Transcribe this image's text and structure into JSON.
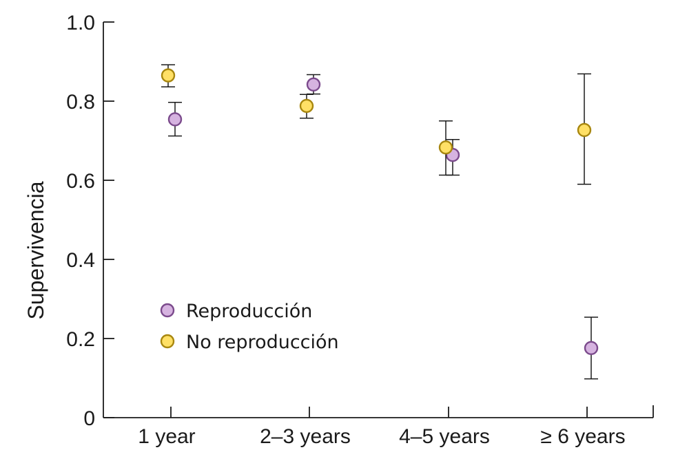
{
  "chart_data": {
    "type": "scatter",
    "title": "",
    "xlabel": "",
    "ylabel": "Supervivencia",
    "ylim": [
      0,
      1
    ],
    "yticks": [
      0,
      0.2,
      0.4,
      0.6,
      0.8,
      1.0
    ],
    "ytick_labels": [
      "0",
      "0.2",
      "0.4",
      "0.6",
      "0.8",
      "1.0"
    ],
    "categories": [
      "1 year",
      "2–3 years",
      "4–5 years",
      "≥ 6 years"
    ],
    "legend_position": "lower-left",
    "series": [
      {
        "name": "Reproducción",
        "color": "#d6b3e0",
        "edge_color": "#7b4a8c",
        "values": [
          0.754,
          0.842,
          0.664,
          0.176
        ],
        "lower": [
          0.712,
          0.818,
          0.613,
          0.098
        ],
        "upper": [
          0.797,
          0.867,
          0.703,
          0.254
        ]
      },
      {
        "name": "No reproducción",
        "color": "#ffe066",
        "edge_color": "#a8870f",
        "values": [
          0.865,
          0.788,
          0.683,
          0.727
        ],
        "lower": [
          0.836,
          0.757,
          0.613,
          0.59
        ],
        "upper": [
          0.892,
          0.817,
          0.75,
          0.869
        ]
      }
    ]
  }
}
